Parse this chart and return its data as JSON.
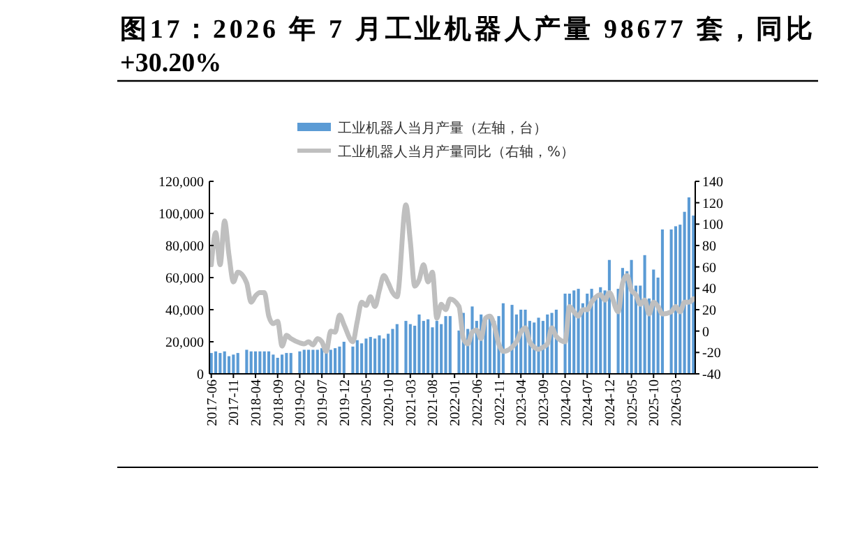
{
  "chart_data": {
    "type": "bar",
    "title": "图17：2026 年 7 月工业机器人产量 98677 套，同比\n+30.20%",
    "categories": [
      "2017-06",
      null,
      null,
      null,
      null,
      "2017-11",
      null,
      null,
      null,
      null,
      "2018-04",
      null,
      null,
      null,
      null,
      "2018-09",
      null,
      null,
      null,
      null,
      "2019-02",
      null,
      null,
      null,
      null,
      "2019-07",
      null,
      null,
      null,
      null,
      "2019-12",
      null,
      null,
      null,
      null,
      "2020-05",
      null,
      null,
      null,
      null,
      "2020-10",
      null,
      null,
      null,
      null,
      "2021-03",
      null,
      null,
      null,
      null,
      "2021-08",
      null,
      null,
      null,
      null,
      "2022-01",
      null,
      null,
      null,
      null,
      "2022-06",
      null,
      null,
      null,
      null,
      "2022-11",
      null,
      null,
      null,
      null,
      "2023-04",
      null,
      null,
      null,
      null,
      "2023-09",
      null,
      null,
      null,
      null,
      "2024-02",
      null,
      null,
      null,
      null,
      "2024-07",
      null,
      null,
      null,
      null,
      "2024-12",
      null,
      null,
      null,
      null,
      "2025-05",
      null,
      null,
      null,
      null,
      "2025-10",
      null,
      null,
      null,
      null,
      "2026-03",
      null,
      null,
      null,
      null
    ],
    "series": [
      {
        "name": "工业机器人当月产量（左轴，台）",
        "color": "#5b9bd5",
        "values": [
          13000,
          14000,
          13000,
          14000,
          11000,
          12000,
          13000,
          null,
          15000,
          14000,
          14000,
          14000,
          14000,
          14000,
          12000,
          10000,
          12000,
          13000,
          13000,
          null,
          14000,
          15000,
          15000,
          15000,
          15000,
          16000,
          14000,
          15000,
          16000,
          17000,
          20000,
          null,
          17000,
          21000,
          19000,
          22000,
          23000,
          22000,
          24000,
          22000,
          25000,
          28000,
          31000,
          null,
          33000,
          31000,
          30000,
          37000,
          33000,
          34000,
          29000,
          33000,
          31000,
          36000,
          36000,
          null,
          27000,
          38000,
          28000,
          42000,
          33000,
          37000,
          35000,
          36000,
          33000,
          36000,
          44000,
          null,
          43000,
          37000,
          40000,
          40000,
          33000,
          32000,
          35000,
          33000,
          37000,
          38000,
          40000,
          null,
          50000,
          50000,
          52000,
          53000,
          44000,
          50000,
          53000,
          48000,
          54000,
          52000,
          71000,
          null,
          53000,
          66000,
          64000,
          71000,
          55000,
          55000,
          74000,
          47000,
          65000,
          60000,
          90000,
          null,
          90000,
          92000,
          93000,
          101000,
          110000,
          98677
        ]
      },
      {
        "name": "工业机器人当月产量同比（右轴，%）",
        "type": "line",
        "axis": "y2",
        "color": "#bfbfbf",
        "values": [
          62,
          92,
          62,
          103,
          71,
          46,
          55,
          null,
          45,
          27,
          33,
          36,
          36,
          14,
          7,
          9,
          -14,
          -4,
          -7,
          null,
          -11,
          -12,
          -10,
          -13,
          -7,
          -10,
          -19,
          0,
          -1,
          15,
          6,
          null,
          -10,
          9,
          27,
          24,
          32,
          23,
          38,
          52,
          45,
          36,
          32,
          null,
          118,
          84,
          42,
          48,
          62,
          46,
          55,
          12,
          25,
          20,
          30,
          null,
          23,
          -7,
          -12,
          -1,
          1,
          -7,
          12,
          14,
          5,
          -12,
          -19,
          null,
          -15,
          -10,
          -1,
          3,
          -10,
          -15,
          -17,
          -15,
          -12,
          3,
          -5,
          null,
          -10,
          23,
          18,
          14,
          20,
          20,
          27,
          32,
          34,
          29,
          36,
          null,
          18,
          45,
          52,
          38,
          34,
          25,
          29,
          16,
          27,
          23,
          16,
          null,
          18,
          23,
          18,
          27,
          27,
          30.2
        ]
      }
    ],
    "ylim": [
      0,
      120000
    ],
    "yticks": [
      {
        "value": 0,
        "label": "0"
      },
      {
        "value": 20000,
        "label": "20,000"
      },
      {
        "value": 40000,
        "label": "40,000"
      },
      {
        "value": 60000,
        "label": "60,000"
      },
      {
        "value": 80000,
        "label": "80,000"
      },
      {
        "value": 100000,
        "label": "100,000"
      },
      {
        "value": 120000,
        "label": "120,000"
      }
    ],
    "y2lim": [
      -40,
      140
    ],
    "y2ticks": [
      -40,
      -20,
      0,
      20,
      40,
      60,
      80,
      100,
      120,
      140
    ],
    "grid": false,
    "legend": "top"
  }
}
